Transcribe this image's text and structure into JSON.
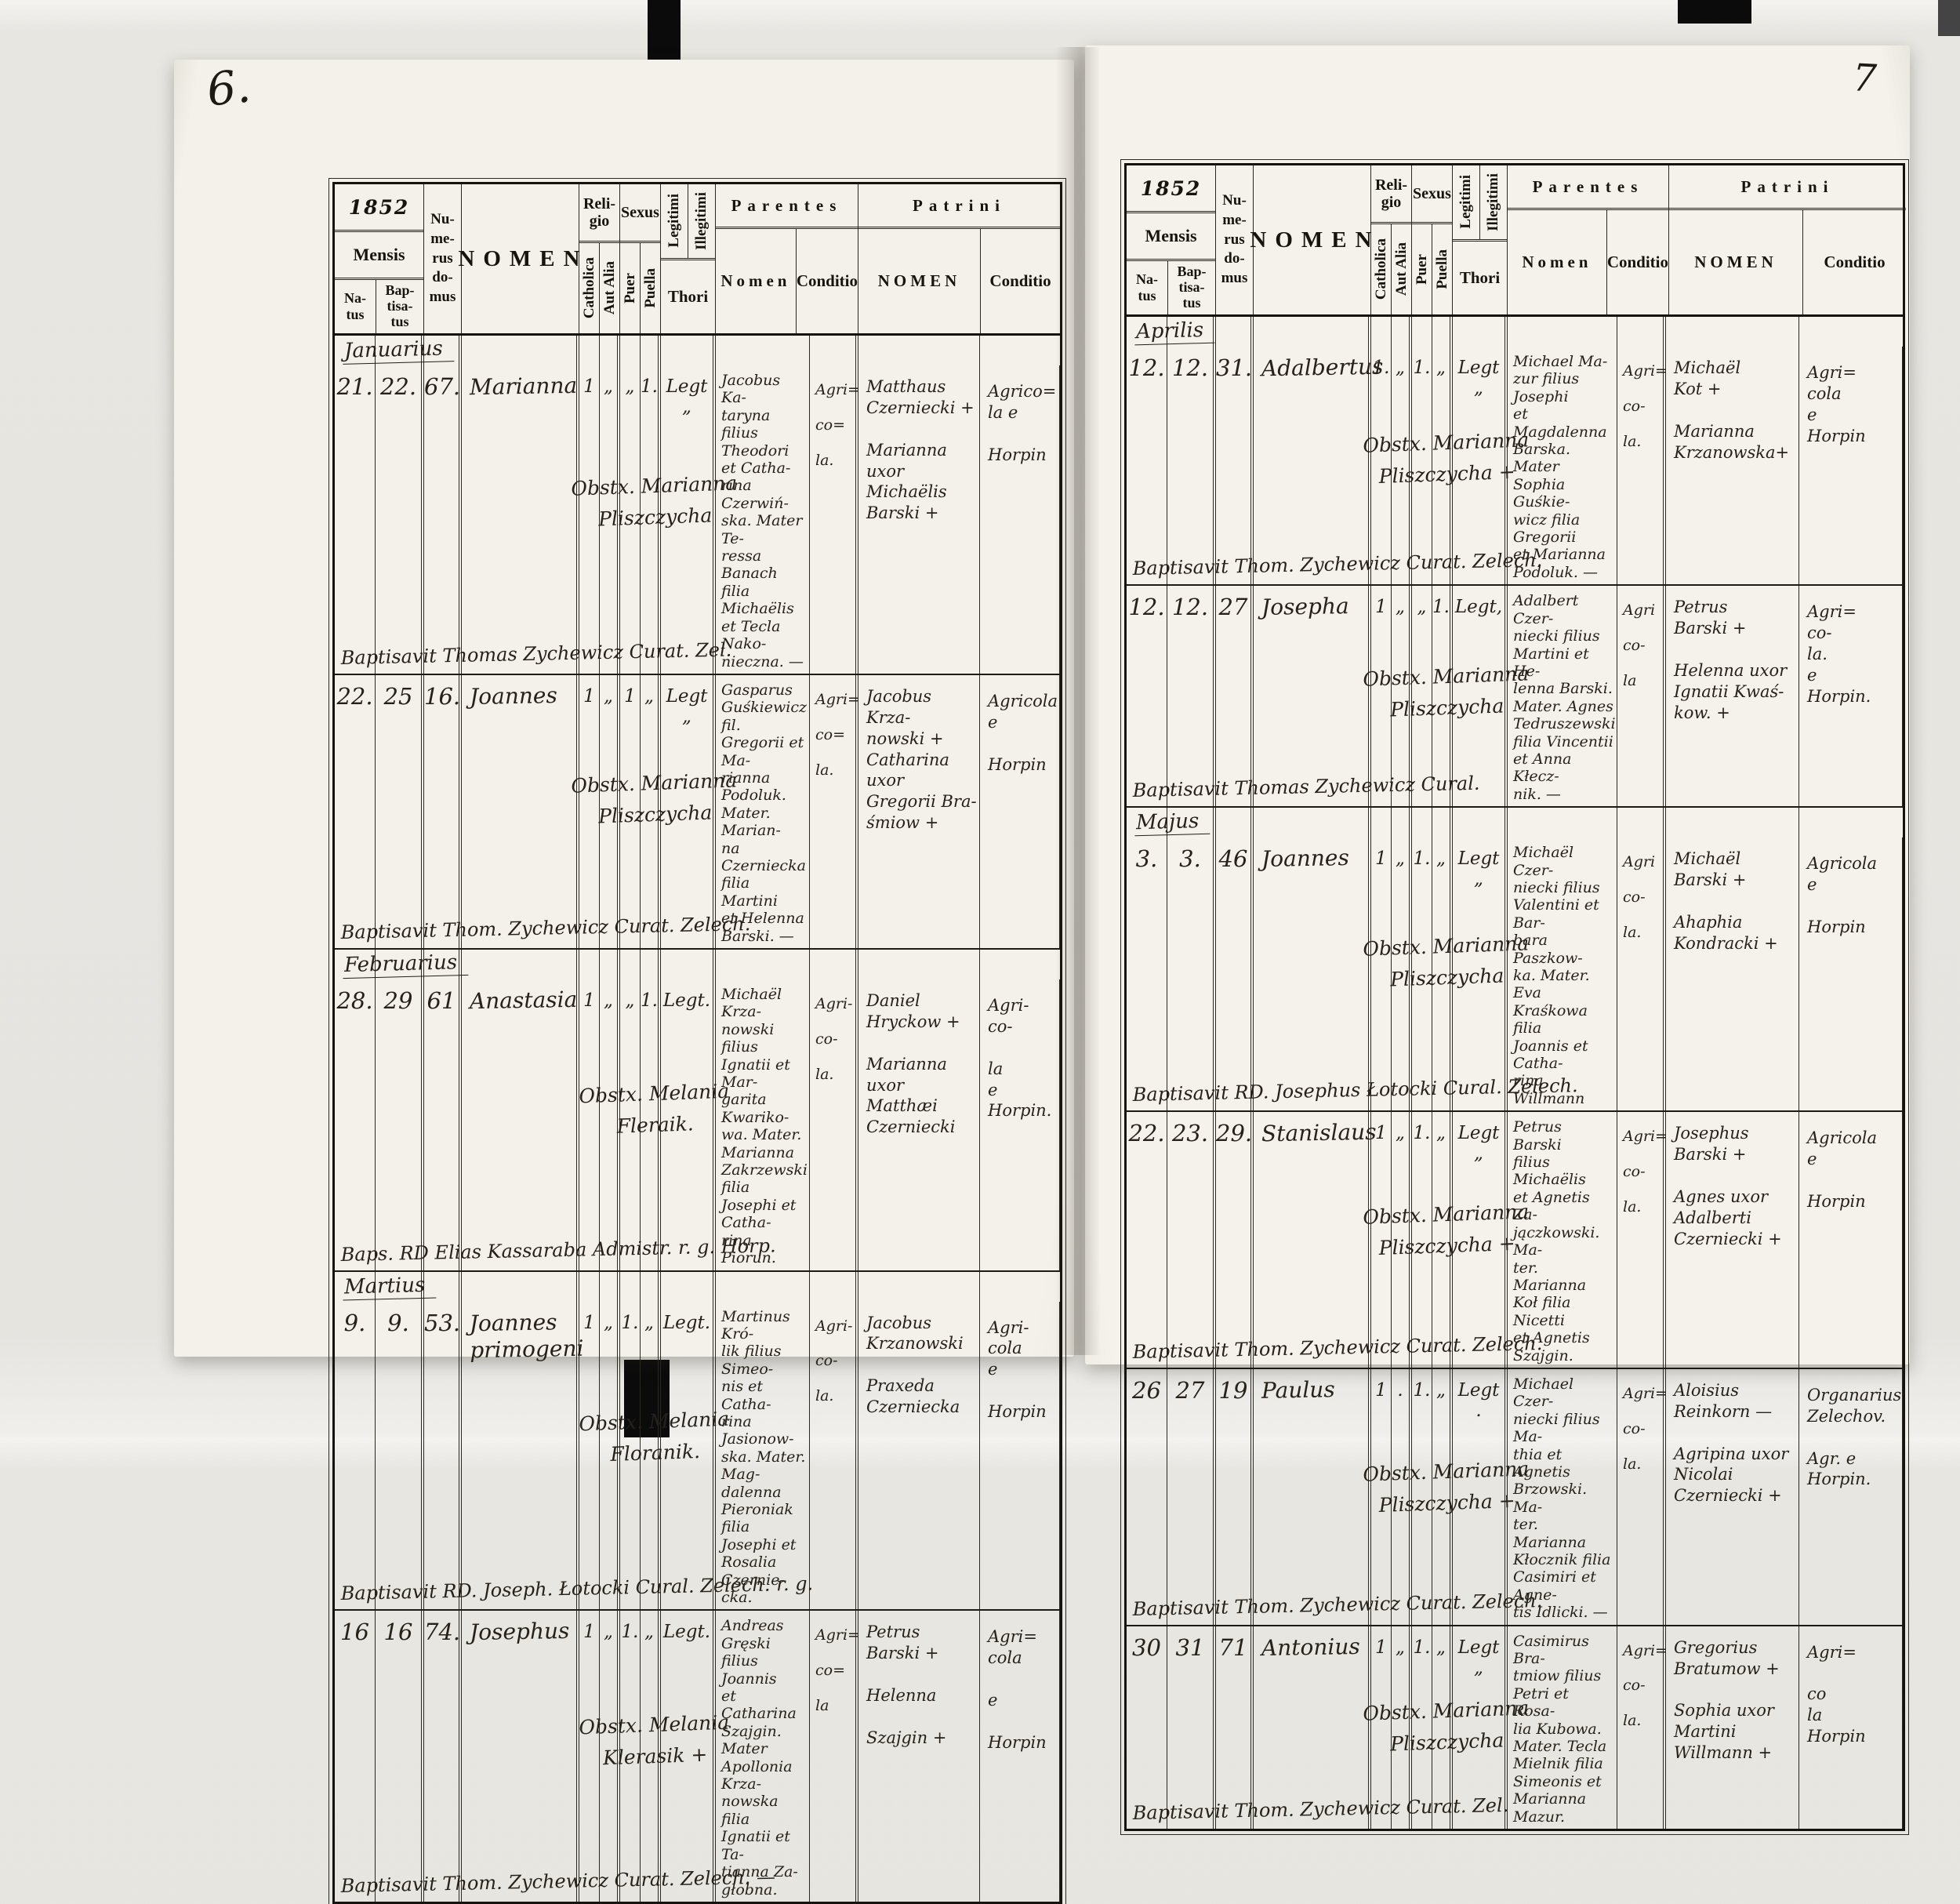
{
  "header_labels": {
    "year": "1852",
    "mensis": "Mensis",
    "natus": "Na-\ntus",
    "baptisatus": "Bap-\ntisa-\ntus",
    "numerus_domus": "Nu-\nme-\nrus\ndo-\nmus",
    "nomen": "NOMEN",
    "religio": "Reli-\ngio",
    "catholica": "Catholica",
    "aut_alia": "Aut Alia",
    "sexus": "Sexus",
    "puer": "Puer",
    "puella": "Puella",
    "legitimi": "Legitimi",
    "illegitimi": "Illegitimi",
    "thori": "Thori",
    "parentes": "Parentes",
    "parentes_nomen": "Nomen",
    "parentes_conditio": "Conditio",
    "patrini": "Patrini",
    "patrini_nomen": "NOMEN",
    "patrini_conditio": "Conditio"
  },
  "pages": [
    {
      "side": "left",
      "page_number": "6.",
      "rows": [
        {
          "month": "Januarius"
        },
        {
          "entry": {
            "natus": "21.",
            "baptisatus": "22.",
            "domus": "67.",
            "nomen": "Marianna",
            "cath": "1",
            "alia": "„",
            "puer": "„",
            "puella": "1.",
            "thori": "Legt „",
            "obstetrix": "Obstx. Marianna\nPliszczycha",
            "baptisavit": "Baptisavit Thomas Zychewicz Curat. Zel.",
            "parentes": "Jacobus Ka-\ntaryna filius\nTheodori et Catha-\nrina Czerwiń-\nska. Mater Te-\nressa Banach\nfilia Michaëlis\net Tecla Nako-\nnieczna. —",
            "parentes_conditio": "Agri=\n\nco=\n\nla.",
            "patrini": "Matthaus\nCzerniecki +\n\nMarianna\nuxor Michaëlis\nBarski +",
            "patrini_conditio": "Agrico=\nla e\n\nHorpin"
          }
        },
        {
          "entry": {
            "natus": "22.",
            "baptisatus": "25",
            "domus": "16.",
            "nomen": "Joannes",
            "cath": "1",
            "alia": "„",
            "puer": "1",
            "puella": "„",
            "thori": "Legt „",
            "obstetrix": "Obstx. Marianna\nPliszczycha",
            "baptisavit": "Baptisavit Thom. Zychewicz Curat. Zelech.",
            "parentes": "Gasparus\nGuśkiewicz fil.\nGregorii et Ma-\nrianna Podoluk.\nMater. Marian-\nna Czerniecka\nfilia Martini\net Helenna\nBarski. —",
            "parentes_conditio": "Agri=\n\nco=\n\nla.",
            "patrini": "Jacobus Krza-\nnowski +\nCatharina uxor\nGregorii Bra-\nśmiow +",
            "patrini_conditio": "Agricola\ne\n\nHorpin"
          }
        },
        {
          "month": "Februarius"
        },
        {
          "entry": {
            "natus": "28.",
            "baptisatus": "29",
            "domus": "61",
            "nomen": "Anastasia",
            "cath": "1",
            "alia": "„",
            "puer": "„",
            "puella": "1.",
            "thori": "Legt.",
            "obstetrix": "Obstx. Melania\nFleraik.",
            "baptisavit": "Baps. RD Elias Kassaraba Admistr. r. g. Horp.",
            "parentes": "Michaël Krza-\nnowski filius\nIgnatii et Mar-\ngarita Kwariko-\nwa. Mater.\nMarianna\nZakrzewski filia\nJosephi et Catha-\nrina Piorun.",
            "parentes_conditio": "Agri-\n\nco-\n\nla.",
            "patrini": "Daniel\nHryckow +\n\nMarianna\nuxor Matthæi\nCzerniecki",
            "patrini_conditio": "Agri-\nco-\n\nla\ne\nHorpin."
          }
        },
        {
          "month": "Martius"
        },
        {
          "entry": {
            "natus": "9.",
            "baptisatus": "9.",
            "domus": "53.",
            "nomen": "Joannes\nprimogeni",
            "cath": "1",
            "alia": "„",
            "puer": "1.",
            "puella": "„",
            "thori": "Legt.",
            "obstetrix": "Obstx. Melania\nFloranik.",
            "baptisavit": "Baptisavit RD. Joseph. Łotocki Cural. Zelech. r. g.",
            "parentes": "Martinus Kró-\nlik filius Simeo-\nnis et Catha-\nrina Jasionow-\nska. Mater. Mag-\ndalenna Pieroniak\nfilia Josephi et\nRosalia Czernie-\ncka.",
            "parentes_conditio": "Agri-\n\nco-\n\nla.",
            "patrini": "Jacobus\nKrzanowski\n\nPraxeda\nCzerniecka",
            "patrini_conditio": "Agri-\ncola\ne\n\nHorpin"
          }
        },
        {
          "entry": {
            "natus": "16",
            "baptisatus": "16",
            "domus": "74.",
            "nomen": "Josephus",
            "cath": "1",
            "alia": "„",
            "puer": "1.",
            "puella": "„",
            "thori": "Legt.",
            "obstetrix": "Obstx. Melania\nKlerasik +",
            "baptisavit": "Baptisavit Thom. Zychewicz Curat. Zelech. —",
            "parentes": "Andreas Gręski\nfilius Joannis\net Catharina\nSzajgin. Mater\nApollonia Krza-\nnowska filia\nIgnatii et Ta-\ntianna Za-\ngłobna.",
            "parentes_conditio": "Agri=\n\nco=\n\nla",
            "patrini": "Petrus\nBarski +\n\nHelenna\n\nSzajgin +",
            "patrini_conditio": "Agri=\ncola\n\ne\n\nHorpin"
          }
        }
      ]
    },
    {
      "side": "right",
      "page_number": "7",
      "rows": [
        {
          "month": "Aprilis"
        },
        {
          "entry": {
            "natus": "12.",
            "baptisatus": "12.",
            "domus": "31.",
            "nomen": "Adalbertus",
            "cath": "1.",
            "alia": "„",
            "puer": "1.",
            "puella": "„",
            "thori": "Legt „",
            "obstetrix": "Obstx. Marianna\nPliszczycha +",
            "baptisavit": "Baptisavit Thom. Zychewicz Curat. Zelech.",
            "parentes": "Michael Ma-\nzur filius Josephi\net Magdalenna\nBarska. Mater\nSophia Guśkie-\nwicz filia Gregorii\net Marianna\nPodoluk. —",
            "parentes_conditio": "Agri=\n\nco-\n\nla.",
            "patrini": "Michaël\nKot +\n\nMarianna\nKrzanowska+",
            "patrini_conditio": "Agri=\ncola\ne\nHorpin"
          }
        },
        {
          "entry": {
            "natus": "12.",
            "baptisatus": "12.",
            "domus": "27",
            "nomen": "Josepha",
            "cath": "1",
            "alia": "„",
            "puer": "„",
            "puella": "1.",
            "thori": "Legt,",
            "obstetrix": "Obstx. Marianna\nPliszczycha",
            "baptisavit": "Baptisavit Thomas Zychewicz Cural.",
            "parentes": "Adalbert Czer-\nniecki filius\nMartini et He-\nlenna Barski.\nMater. Agnes\nTedruszewski\nfilia Vincentii\net Anna Kłecz-\nnik. —",
            "parentes_conditio": "Agri\n\nco-\n\nla",
            "patrini": "Petrus\nBarski +\n\nHelenna uxor\nIgnatii Kwaś-\nkow. +",
            "patrini_conditio": "Agri=\nco-\nla.\ne\nHorpin."
          }
        },
        {
          "month": "Majus"
        },
        {
          "entry": {
            "natus": "3.",
            "baptisatus": "3.",
            "domus": "46",
            "nomen": "Joannes",
            "cath": "1",
            "alia": "„",
            "puer": "1.",
            "puella": "„",
            "thori": "Legt „",
            "obstetrix": "Obstx. Marianna\nPliszczycha",
            "baptisavit": "Baptisavit RD. Josephus Łotocki Cural. Zelech.",
            "parentes": "Michaël Czer-\nniecki filius\nValentini et Bar-\nbara Paszkow-\nka. Mater. Eva\nKraśkowa filia\nJoannis et Catha-\nrina Willmann",
            "parentes_conditio": "Agri\n\nco-\n\nla.",
            "patrini": "Michaël\nBarski +\n\nAhaphia\nKondracki +",
            "patrini_conditio": "Agricola\ne\n\nHorpin"
          }
        },
        {
          "entry": {
            "natus": "22.",
            "baptisatus": "23.",
            "domus": "29.",
            "nomen": "Stanislaus",
            "cath": "1",
            "alia": "„",
            "puer": "1.",
            "puella": "„",
            "thori": "Legt „",
            "obstetrix": "Obstx. Marianna\nPliszczycha +",
            "baptisavit": "Baptisavit Thom. Zychewicz Curat. Zelech.",
            "parentes": "Petrus Barski\nfilius Michaëlis\net Agnetis Za-\njączkowski. Ma-\nter. Marianna\nKoł filia Nicetti\net Agnetis Szajgin.",
            "parentes_conditio": "Agri=\n\nco-\n\nla.",
            "patrini": "Josephus Barski +\n\nAgnes uxor\nAdalberti\nCzerniecki +",
            "patrini_conditio": "Agricola\ne\n\nHorpin"
          }
        },
        {
          "entry": {
            "natus": "26",
            "baptisatus": "27",
            "domus": "19",
            "nomen": "Paulus",
            "cath": "1",
            "alia": ".",
            "puer": "1.",
            "puella": "„",
            "thori": "Legt .",
            "obstetrix": "Obstx. Marianna\nPliszczycha +",
            "baptisavit": "Baptisavit Thom. Zychewicz Curat. Zelech.",
            "parentes": "Michael Czer-\nniecki filius Ma-\nthia et Agnetis\nBrzowski. Ma-\nter. Marianna\nKłocznik filia\nCasimiri et Agne-\ntis Idlicki. —",
            "parentes_conditio": "Agri=\n\nco-\n\nla.",
            "patrini": "Aloisius\nReinkorn —\n\nAgripina uxor\nNicolai\nCzerniecki +",
            "patrini_conditio": "Organarius\nZelechov.\n\nAgr. e\nHorpin."
          }
        },
        {
          "entry": {
            "natus": "30",
            "baptisatus": "31",
            "domus": "71",
            "nomen": "Antonius",
            "cath": "1",
            "alia": "„",
            "puer": "1.",
            "puella": "„",
            "thori": "Legt „",
            "obstetrix": "Obstx. Marianna\nPliszczycha",
            "baptisavit": "Baptisavit Thom. Zychewicz Curat. Zel.",
            "parentes": "Casimirus Bra-\ntmiow filius\nPetri et Rosa-\nlia Kubowa.\nMater. Tecla\nMielnik filia\nSimeonis et\nMarianna\nMazur.",
            "parentes_conditio": "Agri=\n\nco-\n\nla.",
            "patrini": "Gregorius\nBratumow +\n\nSophia uxor\nMartini\nWillmann +",
            "patrini_conditio": "Agri=\n\nco\nla\nHorpin"
          }
        }
      ]
    }
  ]
}
